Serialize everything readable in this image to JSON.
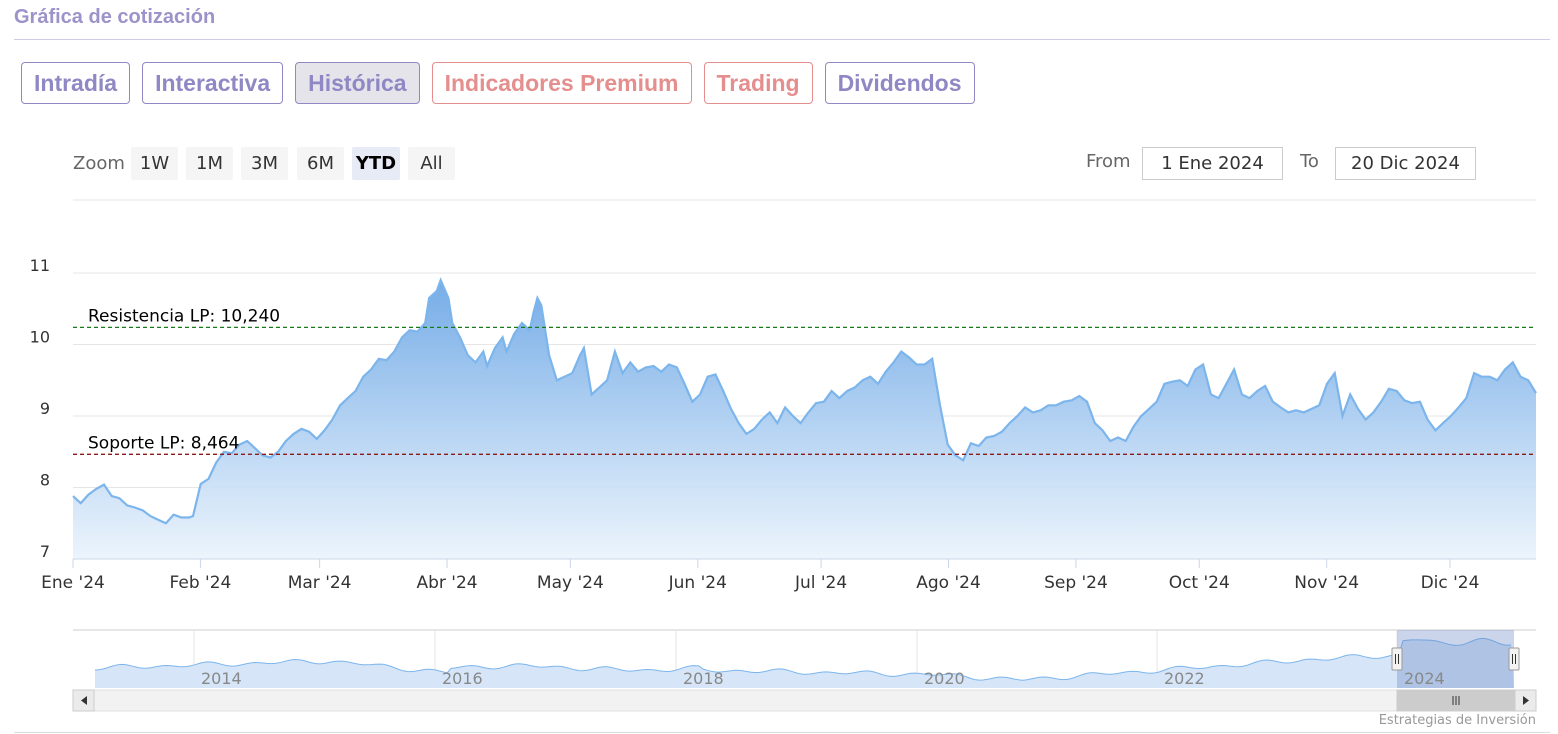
{
  "section_title": "Gráfica de cotización",
  "tabs": [
    {
      "label": "Intradía",
      "active": false,
      "premium": false
    },
    {
      "label": "Interactiva",
      "active": false,
      "premium": false
    },
    {
      "label": "Histórica",
      "active": true,
      "premium": false
    },
    {
      "label": "Indicadores Premium",
      "active": false,
      "premium": true
    },
    {
      "label": "Trading",
      "active": false,
      "premium": true
    },
    {
      "label": "Dividendos",
      "active": false,
      "premium": false
    }
  ],
  "range_selector": {
    "zoom_label": "Zoom",
    "buttons": [
      "1W",
      "1M",
      "3M",
      "6M",
      "YTD",
      "All"
    ],
    "selected": "YTD",
    "from_label": "From",
    "from_value": "1 Ene 2024",
    "to_label": "To",
    "to_value": "20 Dic 2024"
  },
  "credits": "Estrategias de Inversión",
  "colors": {
    "series": "#7cb5ec",
    "resistance": "#1a7a1a",
    "support": "#8b1a1a",
    "accent": "#8f88c4",
    "premium": "#e58e8e"
  },
  "chart_data": {
    "type": "area",
    "ylim": [
      7,
      11
    ],
    "yticks": [
      "7",
      "8",
      "9",
      "10",
      "11"
    ],
    "xticks": [
      {
        "label": "Ene '24",
        "day": 0
      },
      {
        "label": "Feb '24",
        "day": 31
      },
      {
        "label": "Mar '24",
        "day": 60
      },
      {
        "label": "Abr '24",
        "day": 91
      },
      {
        "label": "May '24",
        "day": 121
      },
      {
        "label": "Jun '24",
        "day": 152
      },
      {
        "label": "Jul '24",
        "day": 182
      },
      {
        "label": "Ago '24",
        "day": 213
      },
      {
        "label": "Sep '24",
        "day": 244
      },
      {
        "label": "Oct '24",
        "day": 274
      },
      {
        "label": "Nov '24",
        "day": 305
      },
      {
        "label": "Dic '24",
        "day": 335
      }
    ],
    "xlim_days": [
      0,
      359
    ],
    "plot_lines": [
      {
        "label": "Resistencia LP: 10,240",
        "value": 10.24
      },
      {
        "label": "Soporte LP: 8,464",
        "value": 8.464
      }
    ],
    "series": [
      {
        "points": [
          [
            0,
            7.88
          ],
          [
            2,
            7.78
          ],
          [
            4,
            7.9
          ],
          [
            6,
            7.98
          ],
          [
            8,
            8.04
          ],
          [
            10,
            7.88
          ],
          [
            12,
            7.85
          ],
          [
            14,
            7.75
          ],
          [
            16,
            7.72
          ],
          [
            18,
            7.68
          ],
          [
            20,
            7.6
          ],
          [
            22,
            7.55
          ],
          [
            24,
            7.5
          ],
          [
            26,
            7.62
          ],
          [
            28,
            7.58
          ],
          [
            30,
            7.58
          ],
          [
            31,
            7.6
          ],
          [
            33,
            8.05
          ],
          [
            35,
            8.12
          ],
          [
            37,
            8.35
          ],
          [
            39,
            8.5
          ],
          [
            41,
            8.48
          ],
          [
            43,
            8.6
          ],
          [
            45,
            8.65
          ],
          [
            47,
            8.55
          ],
          [
            49,
            8.45
          ],
          [
            51,
            8.42
          ],
          [
            53,
            8.5
          ],
          [
            55,
            8.65
          ],
          [
            57,
            8.75
          ],
          [
            59,
            8.82
          ],
          [
            61,
            8.78
          ],
          [
            63,
            8.68
          ],
          [
            65,
            8.8
          ],
          [
            67,
            8.95
          ],
          [
            69,
            9.15
          ],
          [
            71,
            9.25
          ],
          [
            73,
            9.35
          ],
          [
            75,
            9.55
          ],
          [
            77,
            9.65
          ],
          [
            79,
            9.8
          ],
          [
            81,
            9.78
          ],
          [
            83,
            9.9
          ],
          [
            85,
            10.1
          ],
          [
            87,
            10.2
          ],
          [
            89,
            10.18
          ],
          [
            91,
            10.3
          ],
          [
            92,
            10.65
          ],
          [
            94,
            10.75
          ],
          [
            95,
            10.9
          ],
          [
            97,
            10.65
          ],
          [
            98,
            10.3
          ],
          [
            100,
            10.1
          ],
          [
            102,
            9.85
          ],
          [
            104,
            9.75
          ],
          [
            106,
            9.9
          ],
          [
            107,
            9.7
          ],
          [
            109,
            9.95
          ],
          [
            111,
            10.1
          ],
          [
            112,
            9.9
          ],
          [
            114,
            10.15
          ],
          [
            116,
            10.3
          ],
          [
            118,
            10.2
          ],
          [
            119,
            10.45
          ],
          [
            120,
            10.65
          ],
          [
            121,
            10.55
          ],
          [
            123,
            9.85
          ],
          [
            125,
            9.5
          ],
          [
            127,
            9.55
          ],
          [
            129,
            9.6
          ],
          [
            131,
            9.85
          ],
          [
            132,
            9.95
          ],
          [
            134,
            9.3
          ],
          [
            136,
            9.4
          ],
          [
            138,
            9.5
          ],
          [
            140,
            9.9
          ],
          [
            142,
            9.6
          ],
          [
            144,
            9.75
          ],
          [
            146,
            9.62
          ],
          [
            148,
            9.68
          ],
          [
            150,
            9.7
          ],
          [
            152,
            9.62
          ],
          [
            154,
            9.72
          ],
          [
            156,
            9.68
          ],
          [
            158,
            9.45
          ],
          [
            160,
            9.2
          ],
          [
            162,
            9.3
          ],
          [
            164,
            9.55
          ],
          [
            166,
            9.58
          ],
          [
            168,
            9.35
          ],
          [
            170,
            9.1
          ],
          [
            172,
            8.9
          ],
          [
            174,
            8.75
          ],
          [
            176,
            8.82
          ],
          [
            178,
            8.95
          ],
          [
            180,
            9.05
          ],
          [
            182,
            8.9
          ],
          [
            184,
            9.12
          ],
          [
            186,
            9.0
          ],
          [
            188,
            8.9
          ],
          [
            190,
            9.05
          ],
          [
            192,
            9.18
          ],
          [
            194,
            9.2
          ],
          [
            196,
            9.35
          ],
          [
            198,
            9.25
          ],
          [
            200,
            9.35
          ],
          [
            202,
            9.4
          ],
          [
            204,
            9.5
          ],
          [
            206,
            9.55
          ],
          [
            208,
            9.45
          ],
          [
            210,
            9.62
          ],
          [
            212,
            9.75
          ],
          [
            214,
            9.9
          ],
          [
            216,
            9.82
          ],
          [
            218,
            9.72
          ],
          [
            220,
            9.72
          ],
          [
            222,
            9.8
          ],
          [
            224,
            9.15
          ],
          [
            226,
            8.6
          ],
          [
            228,
            8.45
          ],
          [
            230,
            8.38
          ],
          [
            232,
            8.62
          ],
          [
            234,
            8.58
          ],
          [
            236,
            8.7
          ],
          [
            238,
            8.72
          ],
          [
            240,
            8.78
          ],
          [
            242,
            8.9
          ],
          [
            244,
            9.0
          ],
          [
            246,
            9.12
          ],
          [
            248,
            9.05
          ],
          [
            250,
            9.08
          ],
          [
            252,
            9.15
          ],
          [
            254,
            9.15
          ],
          [
            256,
            9.2
          ],
          [
            258,
            9.22
          ],
          [
            260,
            9.28
          ],
          [
            262,
            9.2
          ],
          [
            264,
            8.9
          ],
          [
            266,
            8.8
          ],
          [
            268,
            8.65
          ],
          [
            270,
            8.7
          ],
          [
            272,
            8.65
          ],
          [
            274,
            8.85
          ],
          [
            276,
            9.0
          ],
          [
            278,
            9.1
          ],
          [
            280,
            9.2
          ],
          [
            282,
            9.45
          ],
          [
            284,
            9.48
          ],
          [
            286,
            9.5
          ],
          [
            288,
            9.42
          ],
          [
            290,
            9.65
          ],
          [
            292,
            9.72
          ],
          [
            294,
            9.3
          ],
          [
            296,
            9.25
          ],
          [
            298,
            9.45
          ],
          [
            300,
            9.65
          ],
          [
            302,
            9.3
          ],
          [
            304,
            9.25
          ],
          [
            306,
            9.35
          ],
          [
            308,
            9.42
          ],
          [
            310,
            9.2
          ],
          [
            312,
            9.12
          ],
          [
            314,
            9.05
          ],
          [
            316,
            9.08
          ],
          [
            318,
            9.05
          ],
          [
            320,
            9.1
          ],
          [
            322,
            9.15
          ],
          [
            324,
            9.45
          ],
          [
            326,
            9.6
          ],
          [
            328,
            9.0
          ],
          [
            330,
            9.3
          ],
          [
            332,
            9.1
          ],
          [
            334,
            8.95
          ],
          [
            336,
            9.05
          ],
          [
            338,
            9.2
          ],
          [
            340,
            9.38
          ],
          [
            342,
            9.35
          ],
          [
            344,
            9.22
          ],
          [
            346,
            9.18
          ],
          [
            348,
            9.2
          ],
          [
            350,
            8.95
          ],
          [
            352,
            8.8
          ],
          [
            354,
            8.9
          ],
          [
            356,
            9.0
          ],
          [
            358,
            9.12
          ],
          [
            360,
            9.25
          ],
          [
            362,
            9.6
          ],
          [
            364,
            9.55
          ],
          [
            366,
            9.55
          ],
          [
            368,
            9.5
          ],
          [
            370,
            9.65
          ],
          [
            372,
            9.75
          ],
          [
            374,
            9.55
          ],
          [
            376,
            9.5
          ],
          [
            378,
            9.32
          ]
        ]
      }
    ],
    "navigator": {
      "xticks": [
        "2014",
        "2016",
        "2018",
        "2020",
        "2022",
        "2024"
      ]
    }
  }
}
